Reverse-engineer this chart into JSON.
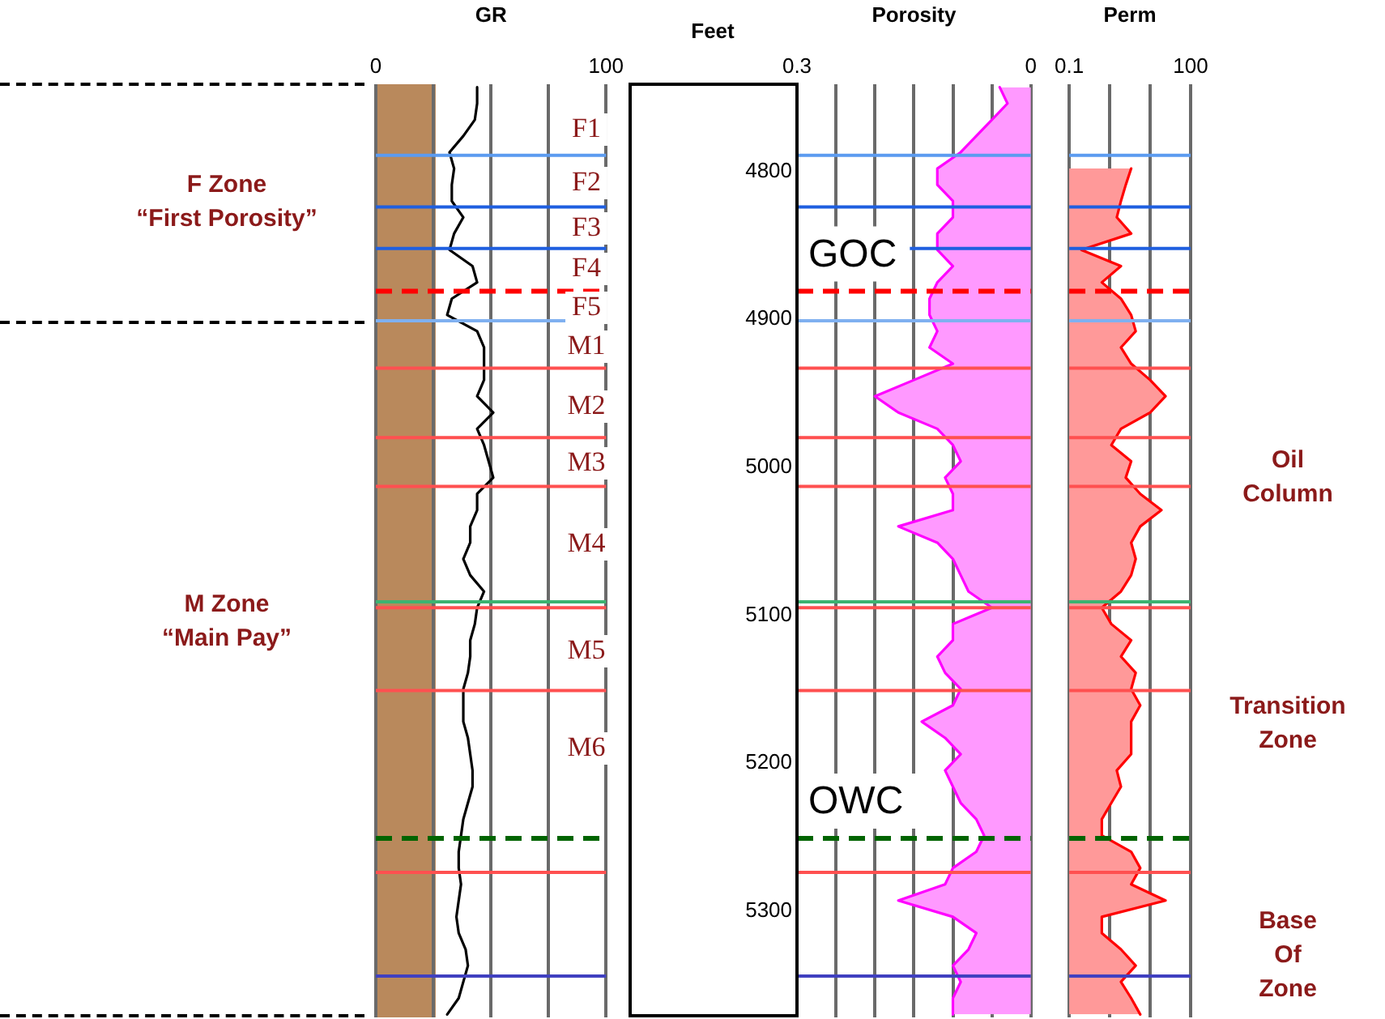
{
  "chart_data": [
    {
      "type": "line",
      "orientation": "horizontal",
      "xlabel": "GR",
      "xlim": [
        0,
        100
      ],
      "xticks": [
        0,
        {
          "value": 25,
          "label": null
        },
        {
          "value": 50,
          "label": null
        },
        {
          "value": 75,
          "label": null
        },
        100
      ],
      "ylim": [
        5372,
        4741
      ],
      "tick_labels": "x",
      "grid": "x",
      "marker": "none",
      "x": [
        4743,
        4754,
        4765,
        4776,
        4787,
        4798,
        4809,
        4820,
        4831,
        4842,
        4853,
        4864,
        4875,
        4886,
        4897,
        4908,
        4919,
        4930,
        4941,
        4952,
        4963,
        4974,
        4985,
        4996,
        5007,
        5018,
        5029,
        5040,
        5051,
        5062,
        5073,
        5084,
        5095,
        5106,
        5117,
        5128,
        5139,
        5150,
        5161,
        5172,
        5183,
        5194,
        5205,
        5216,
        5227,
        5238,
        5249,
        5260,
        5271,
        5282,
        5293,
        5304,
        5315,
        5326,
        5337,
        5348,
        5359,
        5370
      ],
      "series": [
        {
          "color": "#000000",
          "values": [
            44,
            44,
            43,
            38,
            32,
            34,
            33,
            33,
            38,
            34,
            32,
            42,
            44,
            33,
            31,
            44,
            47,
            47,
            47,
            44,
            51,
            44,
            47,
            49,
            51,
            44,
            44,
            41,
            41,
            38,
            41,
            47,
            44,
            43,
            41,
            41,
            40,
            38,
            38,
            38,
            40,
            41,
            42,
            42,
            40,
            38,
            37,
            36,
            36,
            37,
            36,
            35,
            36,
            39,
            40,
            38,
            36,
            31
          ]
        }
      ],
      "bands": [
        {
          "axis": "x",
          "from": 0,
          "to": 26,
          "color": "#b9895c"
        }
      ],
      "ref_lines": [
        {
          "axis": "y",
          "value": 4789,
          "color": "#5b9bf0"
        },
        {
          "axis": "y",
          "value": 4824,
          "color": "#1f5fe0"
        },
        {
          "axis": "y",
          "value": 4852,
          "color": "#1f5fe0"
        },
        {
          "axis": "y",
          "value": 4881,
          "color": "#ff0000",
          "line_style": "dashed"
        },
        {
          "axis": "y",
          "value": 4901,
          "color": "#7fb0f0"
        },
        {
          "axis": "y",
          "value": 4933,
          "color": "#ff5050"
        },
        {
          "axis": "y",
          "value": 4980,
          "color": "#ff5050"
        },
        {
          "axis": "y",
          "value": 5013,
          "color": "#ff5050"
        },
        {
          "axis": "y",
          "value": 5091,
          "color": "#3cb371"
        },
        {
          "axis": "y",
          "value": 5095,
          "color": "#ff5050"
        },
        {
          "axis": "y",
          "value": 5151,
          "color": "#ff5050"
        },
        {
          "axis": "y",
          "value": 5251,
          "color": "#006400",
          "line_style": "dashed"
        },
        {
          "axis": "y",
          "value": 5274,
          "color": "#ff5050"
        },
        {
          "axis": "y",
          "value": 5344,
          "color": "#4040c0"
        }
      ],
      "annotations": [
        "F1",
        "F2",
        "F3",
        "F4",
        "F5",
        "M1",
        "M2",
        "M3",
        "M4",
        "M5",
        "M6",
        "F Zone\n“First Porosity”",
        "M Zone\n“Main Pay”"
      ]
    },
    {
      "type": "area",
      "orientation": "horizontal",
      "xlabel": "Porosity",
      "ylabel": "Feet",
      "xlim": [
        0.3,
        0
      ],
      "xticks": [
        0.3,
        {
          "value": 0.25,
          "label": null
        },
        {
          "value": 0.2,
          "label": null
        },
        {
          "value": 0.15,
          "label": null
        },
        {
          "value": 0.1,
          "label": null
        },
        {
          "value": 0.05,
          "label": null
        },
        0
      ],
      "ylim": [
        5372,
        4741
      ],
      "yticks": [
        4800,
        4900,
        5000,
        5100,
        5200,
        5300
      ],
      "grid": "x",
      "marker": "none",
      "x": [
        4743,
        4754,
        4765,
        4776,
        4787,
        4798,
        4809,
        4820,
        4831,
        4842,
        4853,
        4864,
        4875,
        4886,
        4897,
        4908,
        4919,
        4930,
        4941,
        4952,
        4963,
        4974,
        4985,
        4996,
        5007,
        5018,
        5029,
        5040,
        5051,
        5062,
        5073,
        5084,
        5095,
        5106,
        5117,
        5128,
        5139,
        5150,
        5161,
        5172,
        5183,
        5194,
        5205,
        5216,
        5227,
        5238,
        5249,
        5260,
        5271,
        5282,
        5293,
        5304,
        5315,
        5326,
        5337,
        5348,
        5359,
        5370
      ],
      "series": [
        {
          "color": "#ff00ff",
          "values": [
            0.04,
            0.03,
            0.05,
            0.07,
            0.09,
            0.12,
            0.12,
            0.1,
            0.1,
            0.12,
            0.12,
            0.1,
            0.12,
            0.13,
            0.13,
            0.12,
            0.13,
            0.1,
            0.15,
            0.2,
            0.17,
            0.12,
            0.1,
            0.09,
            0.11,
            0.1,
            0.1,
            0.17,
            0.12,
            0.1,
            0.09,
            0.08,
            0.05,
            0.1,
            0.1,
            0.12,
            0.11,
            0.09,
            0.1,
            0.14,
            0.11,
            0.09,
            0.11,
            0.1,
            0.09,
            0.07,
            0.06,
            0.07,
            0.1,
            0.11,
            0.17,
            0.1,
            0.07,
            0.08,
            0.1,
            0.09,
            0.1,
            0.1
          ]
        }
      ],
      "ref_lines": [
        {
          "axis": "y",
          "value": 4789,
          "color": "#5b9bf0"
        },
        {
          "axis": "y",
          "value": 4824,
          "color": "#1f5fe0"
        },
        {
          "axis": "y",
          "value": 4852,
          "color": "#1f5fe0"
        },
        {
          "axis": "y",
          "value": 4881,
          "color": "#ff0000",
          "line_style": "dashed",
          "label": "GOC"
        },
        {
          "axis": "y",
          "value": 4901,
          "color": "#7fb0f0"
        },
        {
          "axis": "y",
          "value": 4933,
          "color": "#ff5050"
        },
        {
          "axis": "y",
          "value": 4980,
          "color": "#ff5050"
        },
        {
          "axis": "y",
          "value": 5013,
          "color": "#ff5050"
        },
        {
          "axis": "y",
          "value": 5091,
          "color": "#3cb371"
        },
        {
          "axis": "y",
          "value": 5095,
          "color": "#ff5050"
        },
        {
          "axis": "y",
          "value": 5151,
          "color": "#ff5050"
        },
        {
          "axis": "y",
          "value": 5251,
          "color": "#006400",
          "line_style": "dashed",
          "label": "OWC"
        },
        {
          "axis": "y",
          "value": 5274,
          "color": "#ff5050"
        },
        {
          "axis": "y",
          "value": 5344,
          "color": "#4040c0"
        }
      ]
    },
    {
      "type": "area",
      "orientation": "horizontal",
      "xlabel": "Perm",
      "log": "x",
      "xlim": [
        0.1,
        100
      ],
      "xticks": [
        0.1,
        {
          "value": 1,
          "label": null
        },
        {
          "value": 10,
          "label": null
        },
        100
      ],
      "ylim": [
        5372,
        4741
      ],
      "tick_labels": "x",
      "grid": "x",
      "marker": "none",
      "x": [
        4798,
        4809,
        4820,
        4831,
        4842,
        4853,
        4864,
        4875,
        4886,
        4897,
        4908,
        4919,
        4930,
        4941,
        4952,
        4963,
        4974,
        4985,
        4996,
        5007,
        5018,
        5029,
        5040,
        5051,
        5062,
        5073,
        5084,
        5095,
        5106,
        5117,
        5128,
        5139,
        5150,
        5161,
        5172,
        5183,
        5194,
        5205,
        5216,
        5227,
        5238,
        5249,
        5260,
        5271,
        5282,
        5293,
        5304,
        5315,
        5326,
        5337,
        5348,
        5359,
        5370
      ],
      "series": [
        {
          "color": "#ff0000",
          "values": [
            3.4,
            2.5,
            1.9,
            1.5,
            3.4,
            0.2,
            1.9,
            0.64,
            1.9,
            3.4,
            4.4,
            1.9,
            3.4,
            10,
            24,
            10,
            1.9,
            1.1,
            3.4,
            2.5,
            5.7,
            19,
            5.7,
            3.4,
            4.4,
            3.4,
            1.9,
            0.64,
            1.1,
            3.4,
            1.9,
            4.4,
            3.4,
            5.7,
            3.4,
            3.4,
            3.4,
            1.5,
            1.9,
            1.1,
            0.64,
            0.64,
            3.4,
            5.7,
            3.4,
            24,
            0.64,
            0.64,
            1.9,
            4.4,
            1.9,
            3.4,
            5.7
          ]
        }
      ],
      "ref_lines": [
        {
          "axis": "y",
          "value": 4789,
          "color": "#5b9bf0"
        },
        {
          "axis": "y",
          "value": 4824,
          "color": "#1f5fe0"
        },
        {
          "axis": "y",
          "value": 4852,
          "color": "#1f5fe0"
        },
        {
          "axis": "y",
          "value": 4881,
          "color": "#ff0000",
          "line_style": "dashed"
        },
        {
          "axis": "y",
          "value": 4901,
          "color": "#7fb0f0"
        },
        {
          "axis": "y",
          "value": 4933,
          "color": "#ff5050"
        },
        {
          "axis": "y",
          "value": 4980,
          "color": "#ff5050"
        },
        {
          "axis": "y",
          "value": 5013,
          "color": "#ff5050"
        },
        {
          "axis": "y",
          "value": 5091,
          "color": "#3cb371"
        },
        {
          "axis": "y",
          "value": 5095,
          "color": "#ff5050"
        },
        {
          "axis": "y",
          "value": 5151,
          "color": "#ff5050"
        },
        {
          "axis": "y",
          "value": 5251,
          "color": "#006400",
          "line_style": "dashed"
        },
        {
          "axis": "y",
          "value": 5274,
          "color": "#ff5050"
        },
        {
          "axis": "y",
          "value": 5344,
          "color": "#4040c0"
        }
      ],
      "annotations": [
        "Oil\nColumn",
        "Transition\nZone",
        "Base\nOf\nZone"
      ]
    }
  ]
}
